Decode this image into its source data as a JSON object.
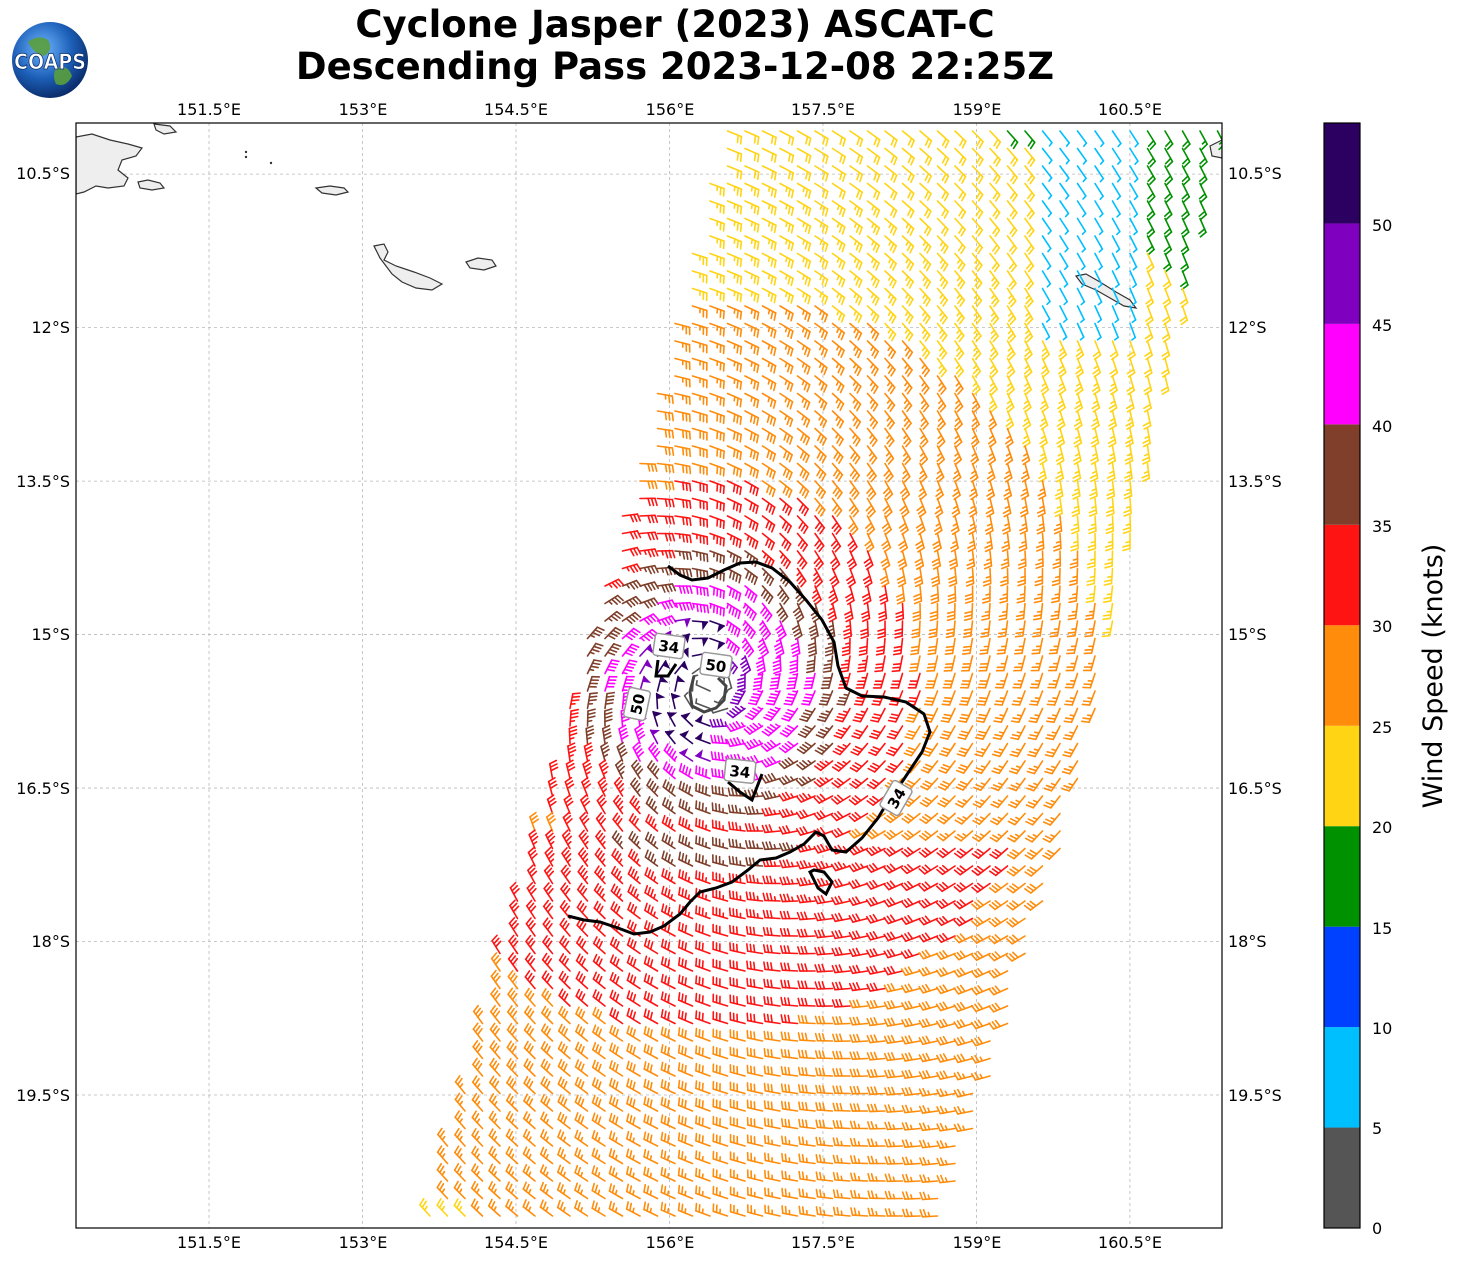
{
  "title": {
    "line1": "Cyclone Jasper (2023) ASCAT-C",
    "line2": "Descending Pass 2023-12-08 22:25Z"
  },
  "logo": {
    "text": "COAPS",
    "icon": "globe-icon"
  },
  "map": {
    "lon_labels": [
      "151.5°E",
      "153°E",
      "154.5°E",
      "156°E",
      "157.5°E",
      "159°E",
      "160.5°E"
    ],
    "lat_labels": [
      "10.5°S",
      "12°S",
      "13.5°S",
      "15°S",
      "16.5°S",
      "18°S",
      "19.5°S"
    ],
    "lon_range": [
      150.2,
      161.4
    ],
    "lat_range": [
      -20.8,
      -10.0
    ],
    "grid": "dashed",
    "contour_labels": [
      "34",
      "50",
      "50",
      "34",
      "34"
    ]
  },
  "colorbar": {
    "label": "Wind Speed (knots)",
    "ticks": [
      "0",
      "5",
      "10",
      "15",
      "20",
      "25",
      "30",
      "35",
      "40",
      "45",
      "50"
    ],
    "bins": [
      {
        "min": 0,
        "max": 5,
        "color": "#555555"
      },
      {
        "min": 5,
        "max": 10,
        "color": "#00bfff"
      },
      {
        "min": 10,
        "max": 15,
        "color": "#0040ff"
      },
      {
        "min": 15,
        "max": 20,
        "color": "#009100"
      },
      {
        "min": 20,
        "max": 25,
        "color": "#ffd414"
      },
      {
        "min": 25,
        "max": 30,
        "color": "#ff8c0a"
      },
      {
        "min": 30,
        "max": 35,
        "color": "#ff1414"
      },
      {
        "min": 35,
        "max": 40,
        "color": "#7f3f2a"
      },
      {
        "min": 40,
        "max": 45,
        "color": "#ff00ff"
      },
      {
        "min": 45,
        "max": 50,
        "color": "#8000c0"
      },
      {
        "min": 50,
        "max": 55,
        "color": "#2b0060"
      }
    ]
  },
  "chart_data": {
    "type": "wind-barb-map",
    "units": "knots",
    "storm_center": {
      "lon": 156.4,
      "lat": -15.5
    },
    "swath_corners": [
      {
        "lon": 156.5,
        "lat": -10.0
      },
      {
        "lon": 161.4,
        "lat": -10.0
      },
      {
        "lon": 160.0,
        "lat": -16.5
      },
      {
        "lon": 158.7,
        "lat": -20.8
      },
      {
        "lon": 153.6,
        "lat": -20.8
      },
      {
        "lon": 155.9,
        "lat": -12.5
      }
    ]
  }
}
